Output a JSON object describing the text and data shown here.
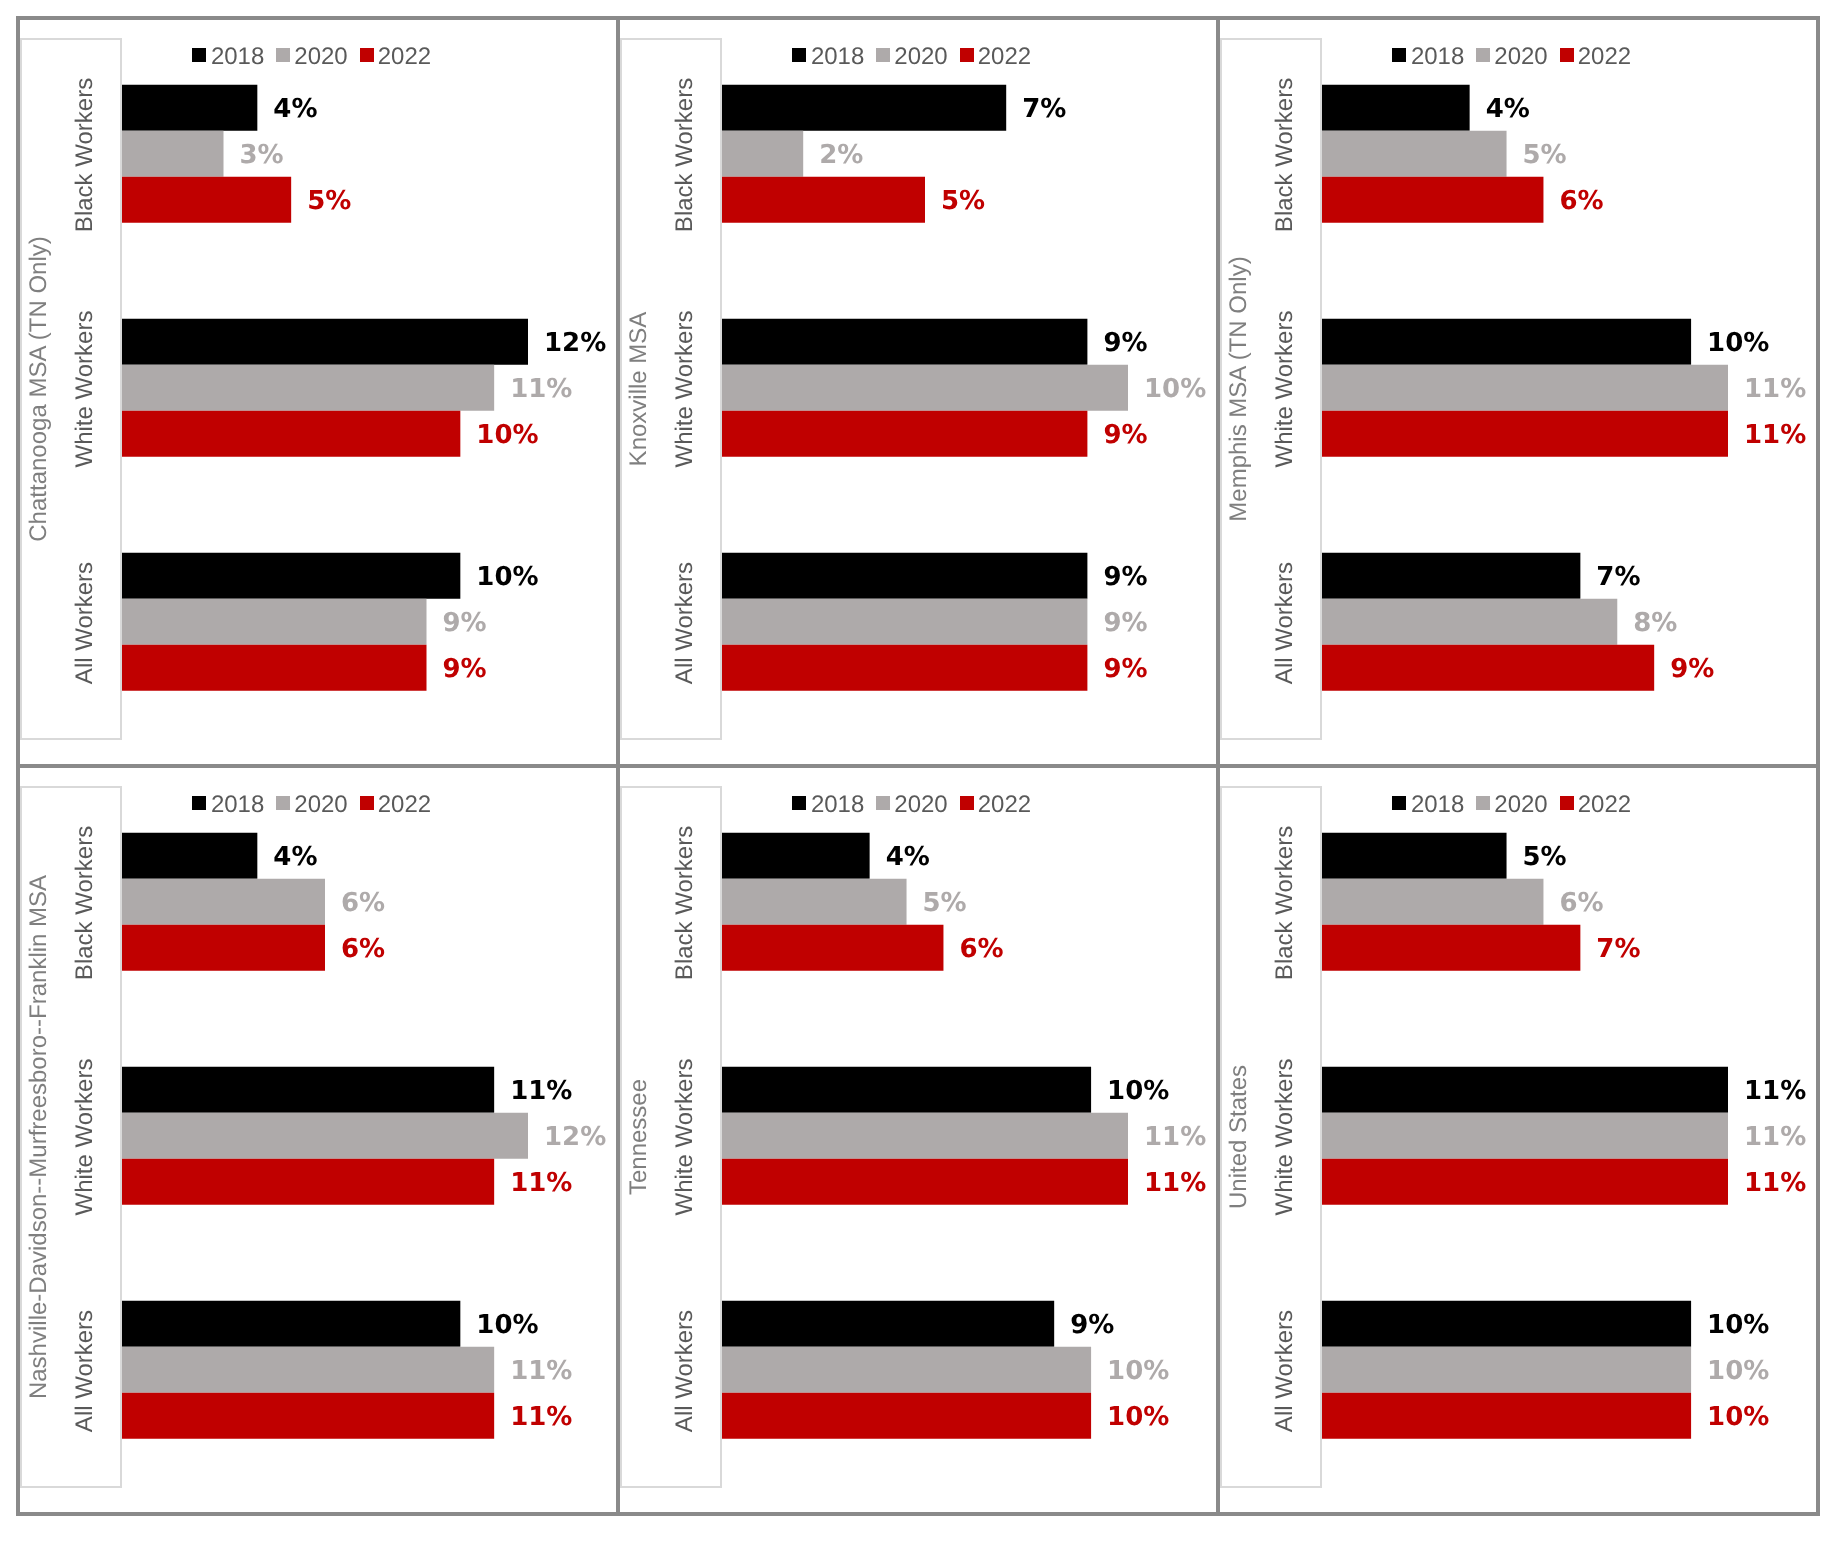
{
  "chart_data": [
    {
      "type": "bar",
      "orientation": "horizontal",
      "ylabel": "Chattanooga MSA (TN Only)",
      "categories": [
        "Black Workers",
        "White Workers",
        "All Workers"
      ],
      "series": [
        {
          "name": "2018",
          "color": "#000000",
          "values": [
            4,
            12,
            10
          ],
          "value_labels": [
            "4%",
            "12%",
            "10%"
          ]
        },
        {
          "name": "2020",
          "color": "#aeaaaa",
          "values": [
            3,
            11,
            9
          ],
          "value_labels": [
            "3%",
            "11%",
            "9%"
          ]
        },
        {
          "name": "2022",
          "color": "#c00000",
          "values": [
            5,
            10,
            9
          ],
          "value_labels": [
            "5%",
            "10%",
            "9%"
          ]
        }
      ],
      "legend": "top",
      "tick_labels": "y"
    },
    {
      "type": "bar",
      "orientation": "horizontal",
      "ylabel": "Knoxville MSA",
      "categories": [
        "Black Workers",
        "White Workers",
        "All Workers"
      ],
      "series": [
        {
          "name": "2018",
          "color": "#000000",
          "values": [
            7,
            9,
            9
          ],
          "value_labels": [
            "7%",
            "9%",
            "9%"
          ]
        },
        {
          "name": "2020",
          "color": "#aeaaaa",
          "values": [
            2,
            10,
            9
          ],
          "value_labels": [
            "2%",
            "10%",
            "9%"
          ]
        },
        {
          "name": "2022",
          "color": "#c00000",
          "values": [
            5,
            9,
            9
          ],
          "value_labels": [
            "5%",
            "9%",
            "9%"
          ]
        }
      ],
      "legend": "top",
      "tick_labels": "y"
    },
    {
      "type": "bar",
      "orientation": "horizontal",
      "ylabel": "Memphis MSA (TN Only)",
      "categories": [
        "Black Workers",
        "White Workers",
        "All Workers"
      ],
      "series": [
        {
          "name": "2018",
          "color": "#000000",
          "values": [
            4,
            10,
            7
          ],
          "value_labels": [
            "4%",
            "10%",
            "7%"
          ]
        },
        {
          "name": "2020",
          "color": "#aeaaaa",
          "values": [
            5,
            11,
            8
          ],
          "value_labels": [
            "5%",
            "11%",
            "8%"
          ]
        },
        {
          "name": "2022",
          "color": "#c00000",
          "values": [
            6,
            11,
            9
          ],
          "value_labels": [
            "6%",
            "11%",
            "9%"
          ]
        }
      ],
      "legend": "top",
      "tick_labels": "y"
    },
    {
      "type": "bar",
      "orientation": "horizontal",
      "ylabel": "Nashville-Davidson--Murfreesboro--Franklin MSA",
      "categories": [
        "Black Workers",
        "White Workers",
        "All Workers"
      ],
      "series": [
        {
          "name": "2018",
          "color": "#000000",
          "values": [
            4,
            11,
            10
          ],
          "value_labels": [
            "4%",
            "11%",
            "10%"
          ]
        },
        {
          "name": "2020",
          "color": "#aeaaaa",
          "values": [
            6,
            12,
            11
          ],
          "value_labels": [
            "6%",
            "12%",
            "11%"
          ]
        },
        {
          "name": "2022",
          "color": "#c00000",
          "values": [
            6,
            11,
            11
          ],
          "value_labels": [
            "6%",
            "11%",
            "11%"
          ]
        }
      ],
      "legend": "top",
      "tick_labels": "y"
    },
    {
      "type": "bar",
      "orientation": "horizontal",
      "ylabel": "Tennessee",
      "categories": [
        "Black Workers",
        "White Workers",
        "All Workers"
      ],
      "series": [
        {
          "name": "2018",
          "color": "#000000",
          "values": [
            4,
            10,
            9
          ],
          "value_labels": [
            "4%",
            "10%",
            "9%"
          ]
        },
        {
          "name": "2020",
          "color": "#aeaaaa",
          "values": [
            5,
            11,
            10
          ],
          "value_labels": [
            "5%",
            "11%",
            "10%"
          ]
        },
        {
          "name": "2022",
          "color": "#c00000",
          "values": [
            6,
            11,
            10
          ],
          "value_labels": [
            "6%",
            "11%",
            "10%"
          ]
        }
      ],
      "legend": "top",
      "tick_labels": "y"
    },
    {
      "type": "bar",
      "orientation": "horizontal",
      "ylabel": "United States",
      "categories": [
        "Black Workers",
        "White Workers",
        "All Workers"
      ],
      "series": [
        {
          "name": "2018",
          "color": "#000000",
          "values": [
            5,
            11,
            10
          ],
          "value_labels": [
            "5%",
            "11%",
            "10%"
          ]
        },
        {
          "name": "2020",
          "color": "#aeaaaa",
          "values": [
            6,
            11,
            10
          ],
          "value_labels": [
            "6%",
            "11%",
            "10%"
          ]
        },
        {
          "name": "2022",
          "color": "#c00000",
          "values": [
            7,
            11,
            10
          ],
          "value_labels": [
            "7%",
            "11%",
            "10%"
          ]
        }
      ],
      "legend": "top",
      "tick_labels": "y"
    }
  ]
}
